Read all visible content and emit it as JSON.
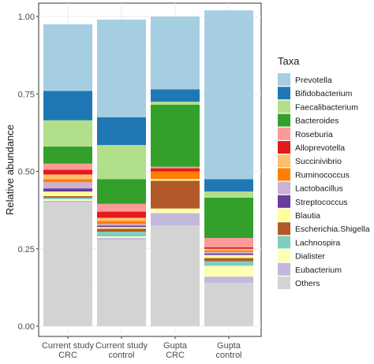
{
  "chart_data": {
    "type": "bar",
    "stacked": true,
    "categories": [
      "Current study\nCRC",
      "Current study\ncontrol",
      "Gupta\nCRC",
      "Gupta\ncontrol"
    ],
    "ylabel": "Relative abundance",
    "xlabel": "",
    "ylim": [
      0,
      1
    ],
    "yticks": [
      "0.00",
      "0.25",
      "0.50",
      "0.75",
      "1.00"
    ],
    "grid": true,
    "legend_title": "Taxa",
    "legend_position": "right",
    "series": [
      {
        "name": "Others",
        "color": "#d3d3d3",
        "values": [
          0.4,
          0.28,
          0.325,
          0.14
        ]
      },
      {
        "name": "Eubacterium",
        "color": "#c2b8dc",
        "values": [
          0.005,
          0.005,
          0.04,
          0.02
        ]
      },
      {
        "name": "Dialister",
        "color": "#ffffb3",
        "values": [
          0.005,
          0.005,
          0.015,
          0.035
        ]
      },
      {
        "name": "Lachnospira",
        "color": "#80cdc1",
        "values": [
          0.005,
          0.015,
          0.0,
          0.015
        ]
      },
      {
        "name": "Escherichia.Shigella",
        "color": "#b15928",
        "values": [
          0.005,
          0.01,
          0.09,
          0.01
        ]
      },
      {
        "name": "Blautia",
        "color": "#ffff99",
        "values": [
          0.015,
          0.005,
          0.005,
          0.01
        ]
      },
      {
        "name": "Streptococcus",
        "color": "#6a3d9a",
        "values": [
          0.01,
          0.005,
          0.0,
          0.005
        ]
      },
      {
        "name": "Lactobacillus",
        "color": "#cab2d6",
        "values": [
          0.02,
          0.005,
          0.0,
          0.005
        ]
      },
      {
        "name": "Ruminococcus",
        "color": "#ff7f00",
        "values": [
          0.01,
          0.01,
          0.025,
          0.005
        ]
      },
      {
        "name": "Succinivibrio",
        "color": "#fdbf6f",
        "values": [
          0.015,
          0.01,
          0.0,
          0.005
        ]
      },
      {
        "name": "Alloprevotella",
        "color": "#e31a1c",
        "values": [
          0.015,
          0.02,
          0.01,
          0.005
        ]
      },
      {
        "name": "Roseburia",
        "color": "#fb9a99",
        "values": [
          0.02,
          0.025,
          0.005,
          0.03
        ]
      },
      {
        "name": "Bacteroides",
        "color": "#33a02c",
        "values": [
          0.055,
          0.08,
          0.2,
          0.13
        ]
      },
      {
        "name": "Faecalibacterium",
        "color": "#b2df8a",
        "values": [
          0.085,
          0.11,
          0.01,
          0.02
        ]
      },
      {
        "name": "Bifidobacterium",
        "color": "#1f78b4",
        "values": [
          0.095,
          0.09,
          0.04,
          0.04
        ]
      },
      {
        "name": "Prevotella",
        "color": "#a6cee3",
        "values": [
          0.215,
          0.315,
          0.235,
          0.545
        ]
      }
    ],
    "legend_order": [
      "Prevotella",
      "Bifidobacterium",
      "Faecalibacterium",
      "Bacteroides",
      "Roseburia",
      "Alloprevotella",
      "Succinivibrio",
      "Ruminococcus",
      "Lactobacillus",
      "Streptococcus",
      "Blautia",
      "Escherichia.Shigella",
      "Lachnospira",
      "Dialister",
      "Eubacterium",
      "Others"
    ]
  }
}
